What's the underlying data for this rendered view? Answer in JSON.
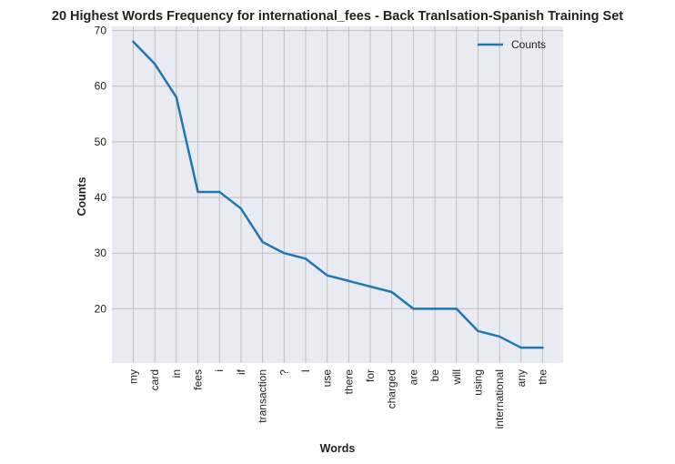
{
  "chart_data": {
    "type": "line",
    "title": "20 Highest Words Frequency for international_fees - Back Tranlsation-Spanish Training Set",
    "xlabel": "Words",
    "ylabel": "Counts",
    "categories": [
      "my",
      "card",
      "in",
      "fees",
      "i",
      "if",
      "transaction",
      "?",
      "I",
      "use",
      "there",
      "for",
      "charged",
      "are",
      "be",
      "will",
      "using",
      "international",
      "any",
      "the"
    ],
    "series": [
      {
        "name": "Counts",
        "values": [
          68,
          64,
          58,
          41,
          41,
          38,
          32,
          30,
          29,
          26,
          25,
          24,
          23,
          20,
          20,
          20,
          16,
          15,
          13,
          13
        ],
        "color": "#1f77b4"
      }
    ],
    "yticks": [
      20,
      30,
      40,
      50,
      60,
      70
    ],
    "ylim": [
      10.25,
      70.75
    ],
    "grid": true,
    "legend_position": "top-right",
    "colors": {
      "plot_background": "#eaeaf2",
      "grid": "#c0c0c0",
      "line": "#1f77b4"
    }
  }
}
